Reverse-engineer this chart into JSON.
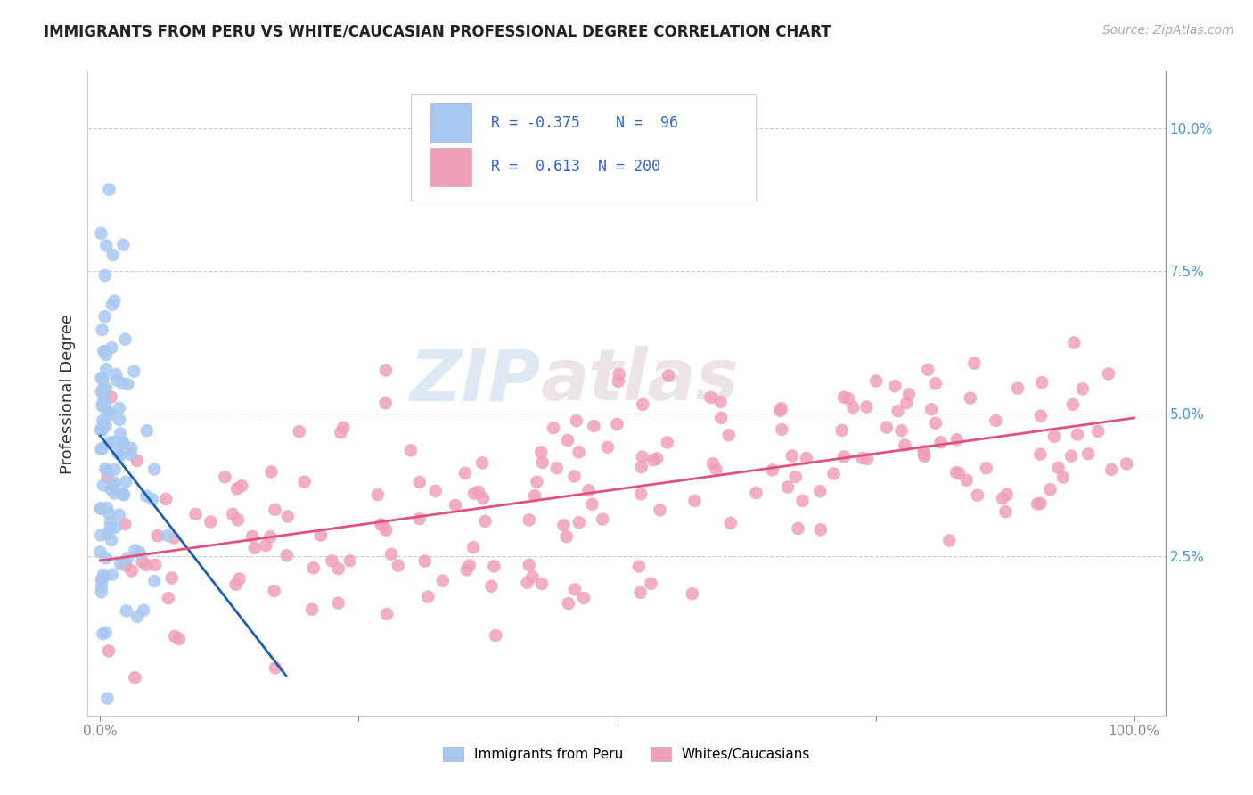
{
  "title": "IMMIGRANTS FROM PERU VS WHITE/CAUCASIAN PROFESSIONAL DEGREE CORRELATION CHART",
  "source": "Source: ZipAtlas.com",
  "ylabel": "Professional Degree",
  "blue_R": -0.375,
  "blue_N": 96,
  "pink_R": 0.613,
  "pink_N": 200,
  "blue_color": "#a8c8f0",
  "blue_line_color": "#1a5fb4",
  "pink_color": "#f0a0b8",
  "pink_line_color": "#e05080",
  "watermark_zip": "ZIP",
  "watermark_atlas": "atlas",
  "legend_label_blue": "Immigrants from Peru",
  "legend_label_pink": "Whites/Caucasians",
  "blue_seed": 42,
  "pink_seed": 7
}
